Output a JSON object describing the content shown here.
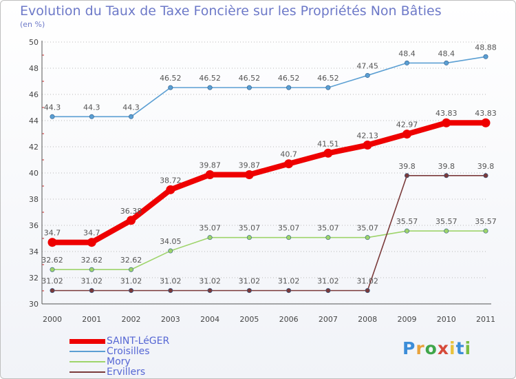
{
  "title": "Evolution du Taux de Taxe Foncière sur les Propriétés Non Bâties",
  "unit_label": "(en %)",
  "logo": {
    "text": "Proxiti",
    "colors": [
      "#3c8dd8",
      "#e8a23c",
      "#3fa64a",
      "#d64a3a",
      "#e8c23c",
      "#3c8dd8",
      "#7bbd42"
    ]
  },
  "chart_data": {
    "type": "line",
    "title": "Evolution du Taux de Taxe Foncière sur les Propriétés Non Bâties",
    "ylabel": "(en %)",
    "xlabel": "",
    "categories": [
      "2000",
      "2001",
      "2002",
      "2003",
      "2004",
      "2005",
      "2006",
      "2007",
      "2008",
      "2009",
      "2010",
      "2011"
    ],
    "ylim": [
      30,
      50
    ],
    "yticks": [
      "30",
      "32",
      "34",
      "36",
      "38",
      "40",
      "42",
      "44",
      "46",
      "48",
      "50"
    ],
    "grid": "horizontal dotted",
    "legend": "bottom-left",
    "series": [
      {
        "name": "SAINT-LéGER",
        "color": "#ee0000",
        "emphasis": true,
        "values": [
          34.7,
          34.7,
          36.38,
          38.72,
          39.87,
          39.87,
          40.7,
          41.51,
          42.13,
          42.97,
          43.83,
          43.83
        ],
        "labels": [
          "34.7",
          "34.7",
          "36.38",
          "38.72",
          "39.87",
          "39.87",
          "40.7",
          "41.51",
          "42.13",
          "42.97",
          "43.83",
          "43.83"
        ]
      },
      {
        "name": "Croisilles",
        "color": "#5b9fd3",
        "emphasis": false,
        "values": [
          44.3,
          44.3,
          44.3,
          46.52,
          46.52,
          46.52,
          46.52,
          46.52,
          47.45,
          48.4,
          48.4,
          48.88
        ],
        "labels": [
          "44.3",
          "44.3",
          "44.3",
          "46.52",
          "46.52",
          "46.52",
          "46.52",
          "46.52",
          "47.45",
          "48.4",
          "48.4",
          "48.88"
        ]
      },
      {
        "name": "Mory",
        "color": "#9ed46a",
        "emphasis": false,
        "values": [
          32.62,
          32.62,
          32.62,
          34.05,
          35.07,
          35.07,
          35.07,
          35.07,
          35.07,
          35.57,
          35.57,
          35.57
        ],
        "labels": [
          "32.62",
          "32.62",
          "32.62",
          "34.05",
          "35.07",
          "35.07",
          "35.07",
          "35.07",
          "35.07",
          "35.57",
          "35.57",
          "35.57"
        ]
      },
      {
        "name": "Ervillers",
        "color": "#7a3a3a",
        "emphasis": false,
        "values": [
          31.02,
          31.02,
          31.02,
          31.02,
          31.02,
          31.02,
          31.02,
          31.02,
          31.02,
          39.8,
          39.8,
          39.8
        ],
        "labels": [
          "31.02",
          "31.02",
          "31.02",
          "31.02",
          "31.02",
          "31.02",
          "31.02",
          "31.02",
          "31.02",
          "39.8",
          "39.8",
          "39.8"
        ]
      }
    ]
  }
}
